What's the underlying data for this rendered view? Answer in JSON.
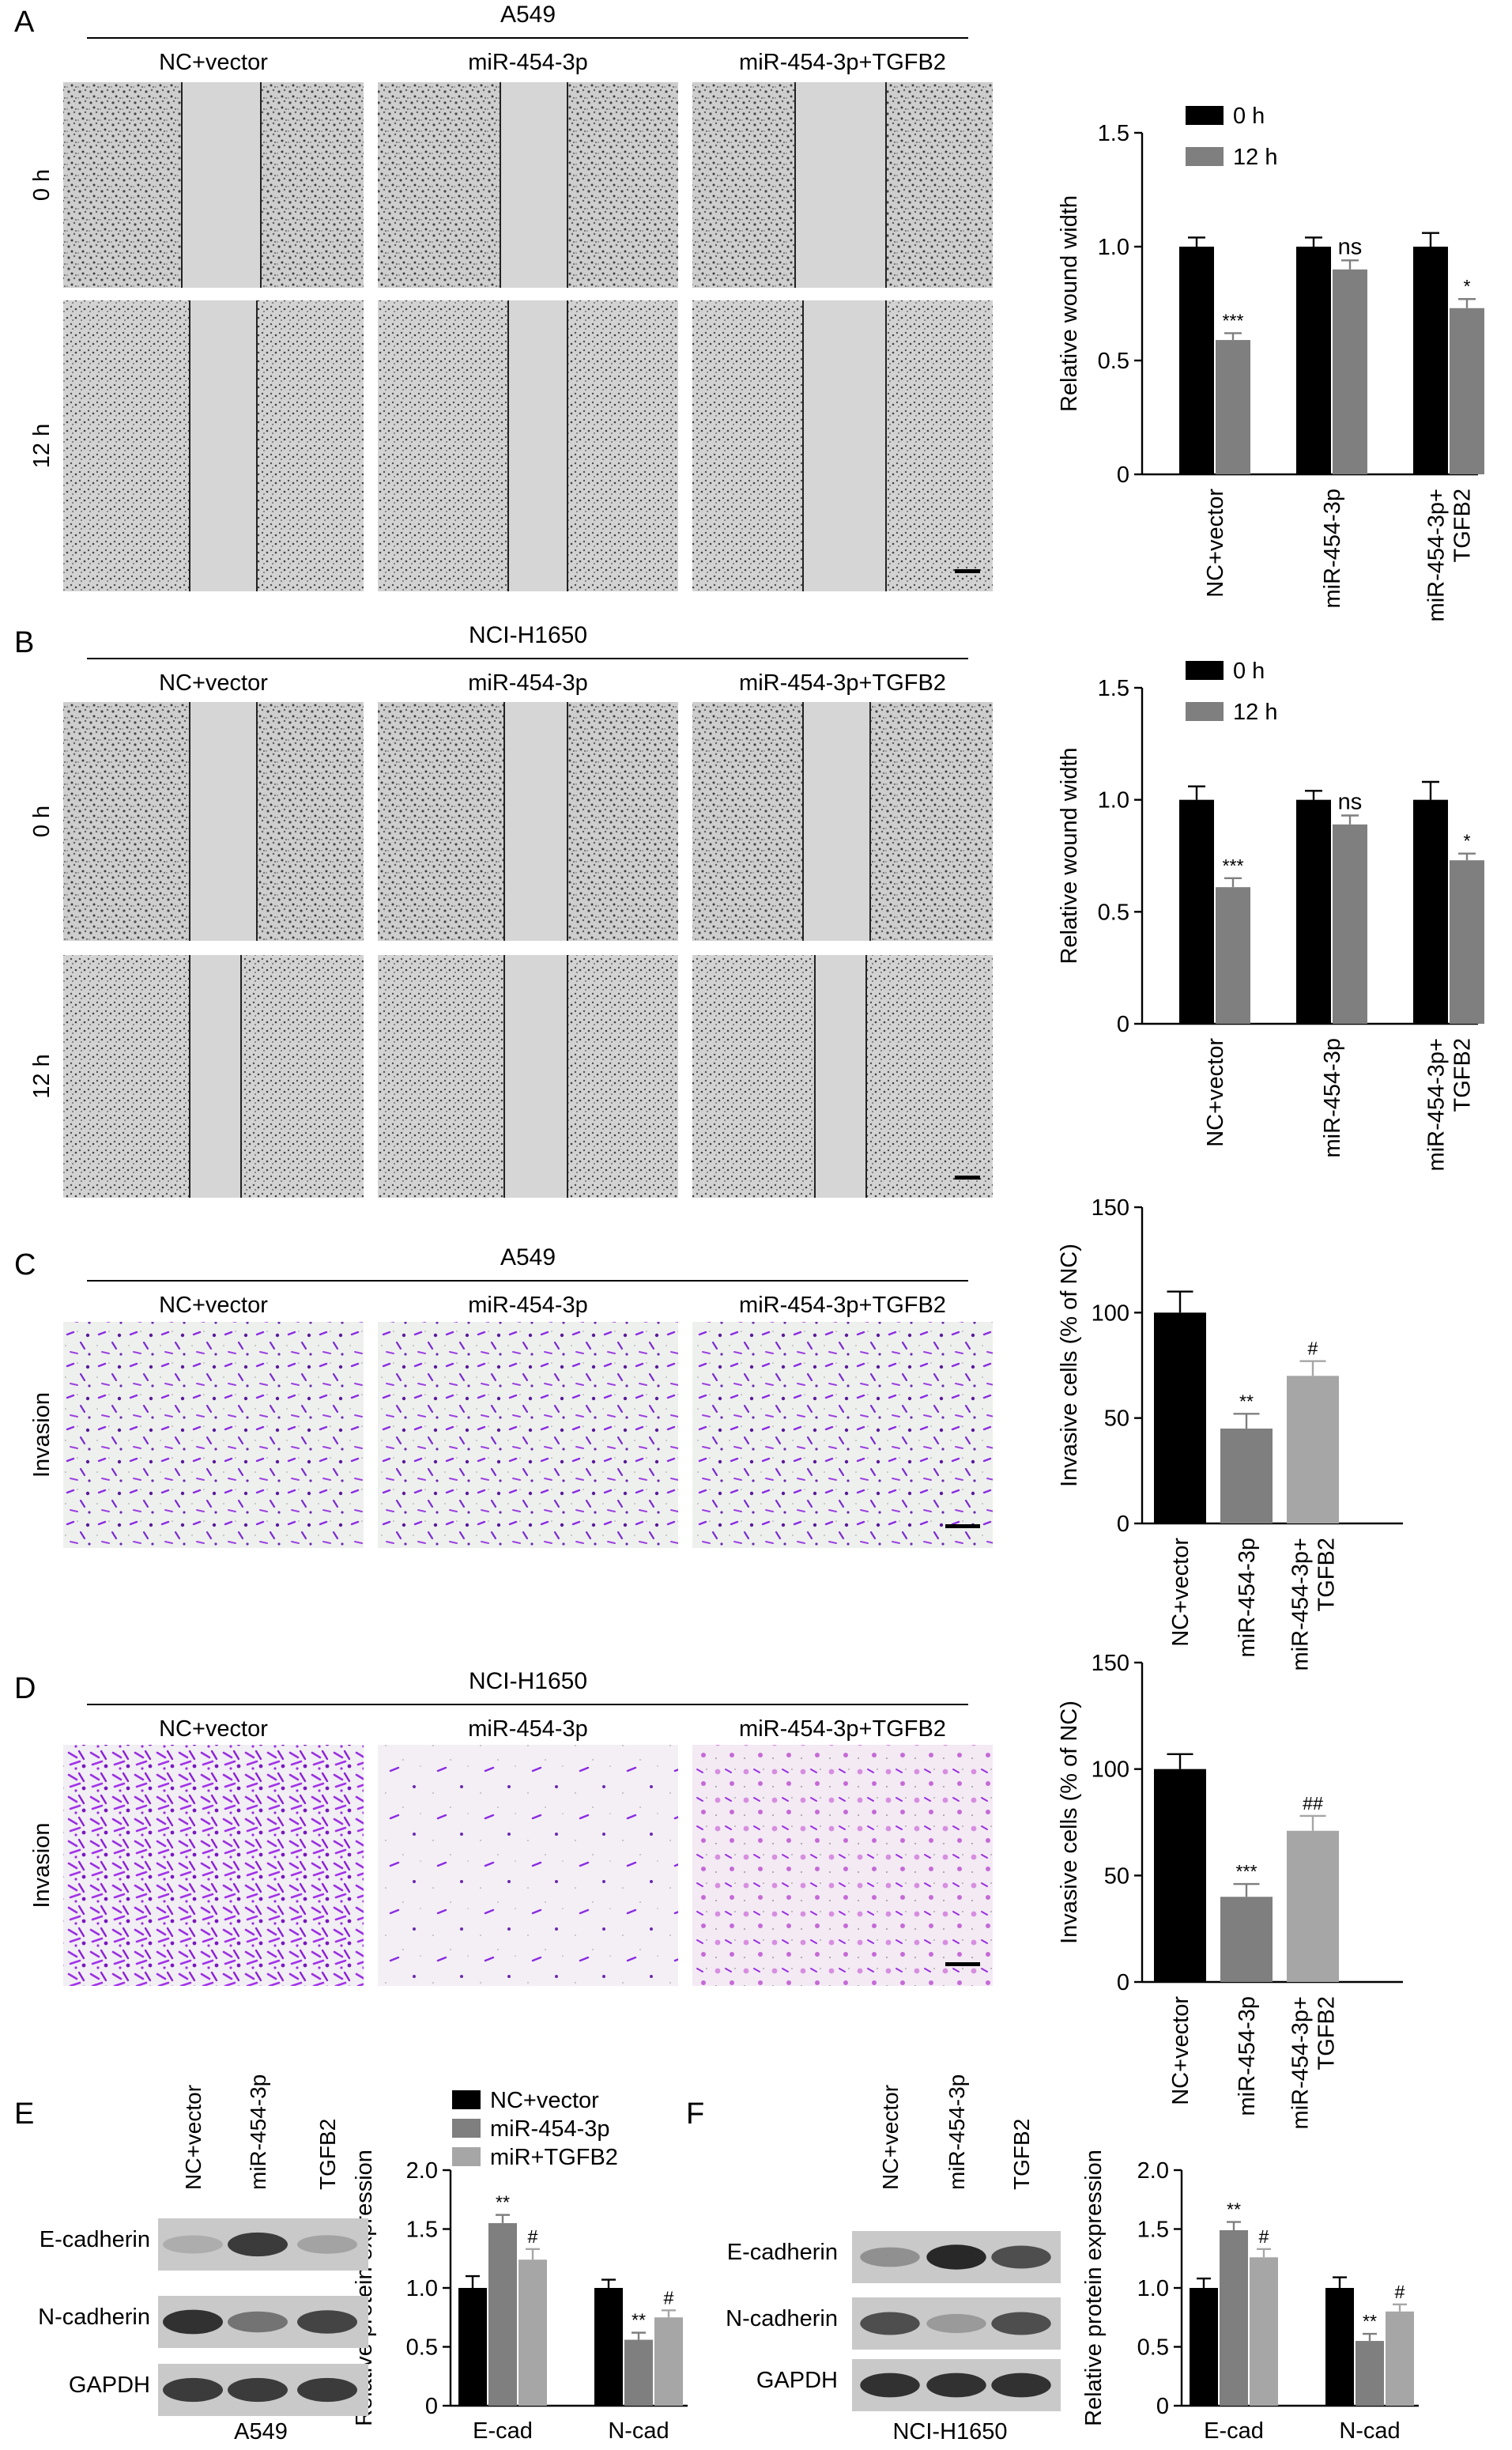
{
  "panels": [
    {
      "letter": "A",
      "cell_line": "A549",
      "conditions": [
        "NC+vector",
        "miR-454-3p",
        "miR-454-3p+TGFB2"
      ],
      "rows": [
        "0 h",
        "12 h"
      ],
      "image_style": "wound"
    },
    {
      "letter": "B",
      "cell_line": "NCI-H1650",
      "conditions": [
        "NC+vector",
        "miR-454-3p",
        "miR-454-3p+TGFB2"
      ],
      "rows": [
        "0 h",
        "12 h"
      ],
      "image_style": "wound"
    },
    {
      "letter": "C",
      "cell_line": "A549",
      "conditions": [
        "NC+vector",
        "miR-454-3p",
        "miR-454-3p+TGFB2"
      ],
      "rows": [
        "Invasion"
      ],
      "image_style": "invasion-sparse"
    },
    {
      "letter": "D",
      "cell_line": "NCI-H1650",
      "conditions": [
        "NC+vector",
        "miR-454-3p",
        "miR-454-3p+TGFB2"
      ],
      "rows": [
        "Invasion"
      ],
      "image_style": "invasion-varied"
    },
    {
      "letter": "E",
      "cell_line": "A549",
      "lanes": [
        "NC+vector",
        "miR-454-3p",
        "TGFB2"
      ],
      "bands": [
        "E-cadherin",
        "N-cadherin",
        "GAPDH"
      ]
    },
    {
      "letter": "F",
      "cell_line": "NCI-H1650",
      "lanes": [
        "NC+vector",
        "miR-454-3p",
        "TGFB2"
      ],
      "bands": [
        "E-cadherin",
        "N-cadherin",
        "GAPDH"
      ]
    }
  ],
  "colors": {
    "black_bar": "#000000",
    "dark_gray_bar": "#7f7f7f",
    "light_gray_bar": "#a6a6a6",
    "invasion_stain": "#8a2be2"
  },
  "chart_data": [
    {
      "id": "A",
      "type": "bar",
      "ylabel": "Relative wound width",
      "ylim": [
        0,
        1.5
      ],
      "yticks": [
        "0",
        "0.5",
        "1.0",
        "1.5"
      ],
      "categories": [
        "NC+vector",
        "miR-454-3p",
        "miR-454-3p+\nTGFB2"
      ],
      "series": [
        {
          "name": "0 h",
          "color": "#000000",
          "values": [
            1.0,
            1.0,
            1.0
          ],
          "errors": [
            0.04,
            0.04,
            0.06
          ]
        },
        {
          "name": "12 h",
          "color": "#7f7f7f",
          "values": [
            0.59,
            0.9,
            0.73
          ],
          "errors": [
            0.03,
            0.04,
            0.04
          ]
        }
      ],
      "annotations": [
        "***",
        "ns",
        "*"
      ],
      "legend": "top-left"
    },
    {
      "id": "B",
      "type": "bar",
      "ylabel": "Relative wound width",
      "ylim": [
        0,
        1.5
      ],
      "yticks": [
        "0",
        "0.5",
        "1.0",
        "1.5"
      ],
      "categories": [
        "NC+vector",
        "miR-454-3p",
        "miR-454-3p+\nTGFB2"
      ],
      "series": [
        {
          "name": "0 h",
          "color": "#000000",
          "values": [
            1.0,
            1.0,
            1.0
          ],
          "errors": [
            0.06,
            0.04,
            0.08
          ]
        },
        {
          "name": "12 h",
          "color": "#7f7f7f",
          "values": [
            0.61,
            0.89,
            0.73
          ],
          "errors": [
            0.04,
            0.04,
            0.03
          ]
        }
      ],
      "annotations": [
        "***",
        "ns",
        "*"
      ],
      "legend": "top-left"
    },
    {
      "id": "C",
      "type": "bar",
      "ylabel": "Invasive cells (% of NC)",
      "ylim": [
        0,
        150
      ],
      "yticks": [
        "0",
        "50",
        "100",
        "150"
      ],
      "categories": [
        "NC+vector",
        "miR-454-3p",
        "miR-454-3p+\nTGFB2"
      ],
      "series": [
        {
          "name": "",
          "colors": [
            "#000000",
            "#7f7f7f",
            "#a6a6a6"
          ],
          "values": [
            100,
            45,
            70
          ],
          "errors": [
            10,
            7,
            7
          ]
        }
      ],
      "annotations": [
        "",
        "**",
        "#"
      ]
    },
    {
      "id": "D",
      "type": "bar",
      "ylabel": "Invasive cells (% of NC)",
      "ylim": [
        0,
        150
      ],
      "yticks": [
        "0",
        "50",
        "100",
        "150"
      ],
      "categories": [
        "NC+vector",
        "miR-454-3p",
        "miR-454-3p+\nTGFB2"
      ],
      "series": [
        {
          "name": "",
          "colors": [
            "#000000",
            "#7f7f7f",
            "#a6a6a6"
          ],
          "values": [
            100,
            40,
            71
          ],
          "errors": [
            7,
            6,
            7
          ]
        }
      ],
      "annotations": [
        "",
        "***",
        "##"
      ]
    },
    {
      "id": "E",
      "type": "bar",
      "ylabel": "Relative protein expression",
      "ylim": [
        0,
        2.0
      ],
      "yticks": [
        "0",
        "0.5",
        "1.0",
        "1.5",
        "2.0"
      ],
      "categories": [
        "E-cad",
        "N-cad"
      ],
      "series": [
        {
          "name": "NC+vector",
          "color": "#000000",
          "values": [
            1.0,
            1.0
          ],
          "errors": [
            0.1,
            0.07
          ]
        },
        {
          "name": "miR-454-3p",
          "color": "#7f7f7f",
          "values": [
            1.55,
            0.56
          ],
          "errors": [
            0.07,
            0.06
          ]
        },
        {
          "name": "miR+TGFB2",
          "color": "#a6a6a6",
          "values": [
            1.24,
            0.75
          ],
          "errors": [
            0.09,
            0.06
          ]
        }
      ],
      "annotations": [
        [
          "",
          "**",
          "#"
        ],
        [
          "",
          "**",
          "#"
        ]
      ],
      "legend": "top"
    },
    {
      "id": "F",
      "type": "bar",
      "ylabel": "Relative protein expression",
      "ylim": [
        0,
        2.0
      ],
      "yticks": [
        "0",
        "0.5",
        "1.0",
        "1.5",
        "2.0"
      ],
      "categories": [
        "E-cad",
        "N-cad"
      ],
      "series": [
        {
          "name": "",
          "color": "#000000",
          "values": [
            1.0,
            1.0
          ],
          "errors": [
            0.08,
            0.09
          ]
        },
        {
          "name": "",
          "color": "#7f7f7f",
          "values": [
            1.49,
            0.55
          ],
          "errors": [
            0.07,
            0.06
          ]
        },
        {
          "name": "",
          "color": "#a6a6a6",
          "values": [
            1.26,
            0.8
          ],
          "errors": [
            0.07,
            0.06
          ]
        }
      ],
      "annotations": [
        [
          "",
          "**",
          "#"
        ],
        [
          "",
          "**",
          "#"
        ]
      ]
    }
  ]
}
